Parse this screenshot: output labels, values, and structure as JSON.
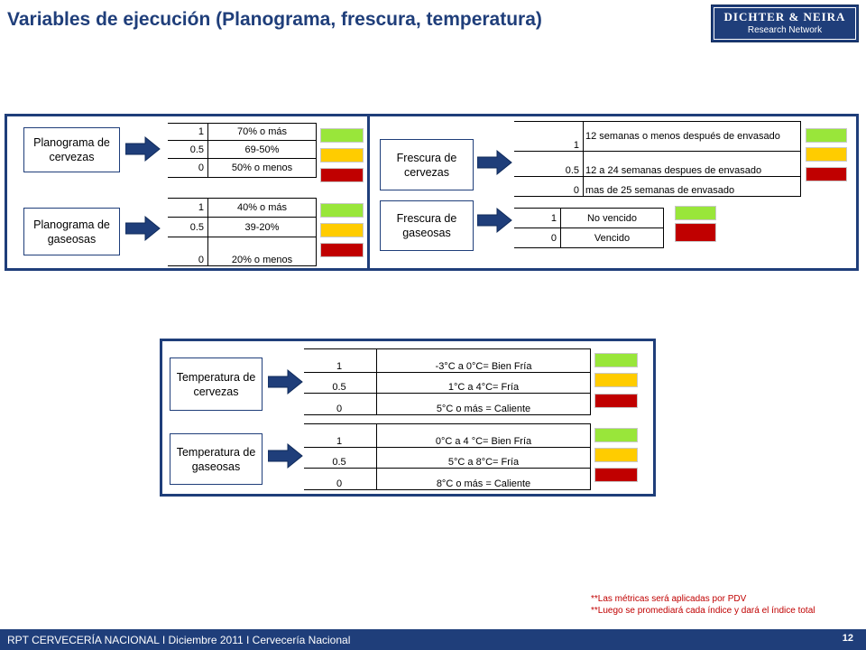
{
  "title": "Variables de ejecución (Planograma, frescura, temperatura)",
  "logo": {
    "line1": "DICHTER & NEIRA",
    "line2": "Research Network"
  },
  "colors": {
    "navy": "#1f3e7a",
    "green": "#99e63a",
    "yellow": "#ffcc00",
    "red": "#c00000"
  },
  "planograma_cervezas": {
    "label": "Planograma de cervezas",
    "rows": [
      {
        "score": "1",
        "desc": "70% o más"
      },
      {
        "score": "0.5",
        "desc": "69-50%"
      },
      {
        "score": "0",
        "desc": "50% o menos"
      }
    ]
  },
  "planograma_gaseosas": {
    "label": "Planograma de gaseosas",
    "rows": [
      {
        "score": "1",
        "desc": "40% o más"
      },
      {
        "score": "0.5",
        "desc": "39-20%"
      },
      {
        "score": "0",
        "desc": "20% o menos"
      }
    ]
  },
  "frescura_cervezas": {
    "label": "Frescura de cervezas",
    "rows": [
      {
        "score": "1",
        "desc": "12 semanas o menos después de envasado"
      },
      {
        "score": "0.5",
        "desc": "12 a 24 semanas despues de envasado"
      },
      {
        "score": "0",
        "desc": "mas de 25 semanas de envasado"
      }
    ]
  },
  "frescura_gaseosas": {
    "label": "Frescura de gaseosas",
    "rows": [
      {
        "score": "1",
        "desc": "No vencido"
      },
      {
        "score": "0",
        "desc": "Vencido"
      }
    ]
  },
  "temperatura_cervezas": {
    "label": "Temperatura de cervezas",
    "rows": [
      {
        "score": "1",
        "desc": "-3°C a 0°C= Bien Fría"
      },
      {
        "score": "0.5",
        "desc": "1°C a 4°C= Fría"
      },
      {
        "score": "0",
        "desc": "5°C o más = Caliente"
      }
    ]
  },
  "temperatura_gaseosas": {
    "label": "Temperatura de gaseosas",
    "rows": [
      {
        "score": "1",
        "desc": "0°C a 4 °C= Bien Fría"
      },
      {
        "score": "0.5",
        "desc": "5°C a 8°C= Fría"
      },
      {
        "score": "0",
        "desc": "8°C o más = Caliente"
      }
    ]
  },
  "notes": [
    "**Las métricas será aplicadas por PDV",
    "**Luego se promediará cada índice y dará el índice total"
  ],
  "footer": {
    "text": "RPT CERVECERÍA NACIONAL  I  Diciembre 2011  I  Cervecería Nacional",
    "page": "12"
  }
}
